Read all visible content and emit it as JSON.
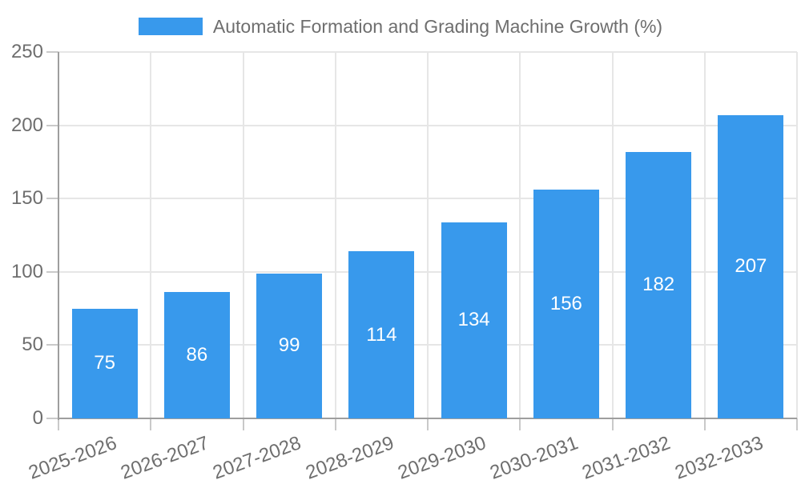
{
  "legend": {
    "label": "Automatic Formation and Grading Machine Growth (%)",
    "swatch_color": "#3899ec"
  },
  "chart_data": {
    "type": "bar",
    "title": "Automatic Formation and Grading Machine Growth (%)",
    "categories": [
      "2025-2026",
      "2026-2027",
      "2027-2028",
      "2028-2029",
      "2029-2030",
      "2030-2031",
      "2031-2032",
      "2032-2033"
    ],
    "values": [
      75,
      86,
      99,
      114,
      134,
      156,
      182,
      207
    ],
    "xlabel": "",
    "ylabel": "",
    "ylim": [
      0,
      250
    ],
    "yticks": [
      0,
      50,
      100,
      150,
      200,
      250
    ],
    "grid": true,
    "legend_position": "top",
    "bar_color": "#3899ec",
    "value_label_color": "#ffffff",
    "axis_color": "#9e9e9e",
    "gridline_color": "#e6e6e6",
    "tick_color": "#c9c9c9",
    "text_color": "#6e6e6e"
  }
}
